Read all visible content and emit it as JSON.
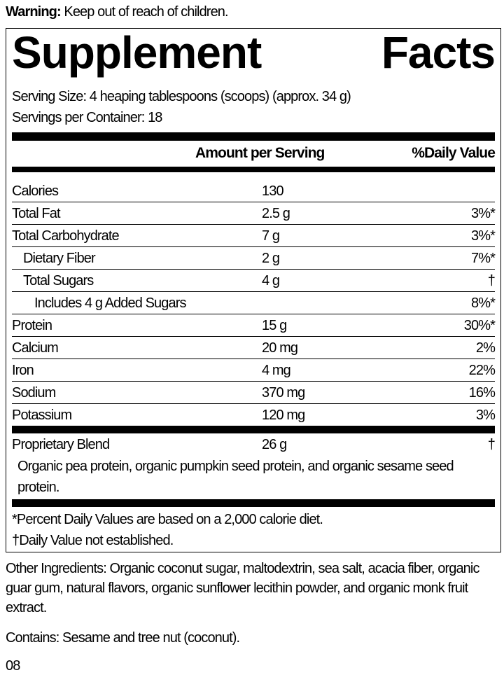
{
  "warning": {
    "label": "Warning:",
    "text": "Keep out of reach of children."
  },
  "title": {
    "word1": "Supplement",
    "word2": "Facts"
  },
  "serving_size": "Serving Size: 4 heaping tablespoons (scoops) (approx. 34 g)",
  "servings_per_container": "Servings per Container: 18",
  "header": {
    "amount": "Amount per Serving",
    "dv": "%Daily Value"
  },
  "rows": [
    {
      "name": "Calories",
      "amount": "130",
      "dv": ""
    },
    {
      "name": "Total Fat",
      "amount": "2.5 g",
      "dv": "3%*"
    },
    {
      "name": "Total Carbohydrate",
      "amount": "7 g",
      "dv": "3%*"
    },
    {
      "name": "Dietary Fiber",
      "amount": "2 g",
      "dv": "7%*"
    },
    {
      "name": "Total Sugars",
      "amount": "4 g",
      "dv": "†"
    },
    {
      "name": "Includes 4 g Added Sugars",
      "amount": "",
      "dv": "8%*"
    },
    {
      "name": "Protein",
      "amount": "15 g",
      "dv": "30%*"
    },
    {
      "name": "Calcium",
      "amount": "20 mg",
      "dv": "2%"
    },
    {
      "name": "Iron",
      "amount": "4 mg",
      "dv": "22%"
    },
    {
      "name": "Sodium",
      "amount": "370 mg",
      "dv": "16%"
    },
    {
      "name": "Potassium",
      "amount": "120 mg",
      "dv": "3%"
    }
  ],
  "blend": {
    "name": "Proprietary Blend",
    "amount": "26 g",
    "dv": "†",
    "description": "Organic pea protein, organic pumpkin seed protein, and organic sesame seed protein."
  },
  "footnotes": [
    "*Percent Daily Values are based on a 2,000 calorie diet.",
    "†Daily Value not established."
  ],
  "other_ingredients": "Other Ingredients: Organic coconut sugar, maltodextrin, sea salt, acacia fiber, organic guar gum, natural flavors, organic sunflower lecithin powder, and organic monk fruit extract.",
  "contains": "Contains: Sesame and tree nut (coconut).",
  "code": "08"
}
